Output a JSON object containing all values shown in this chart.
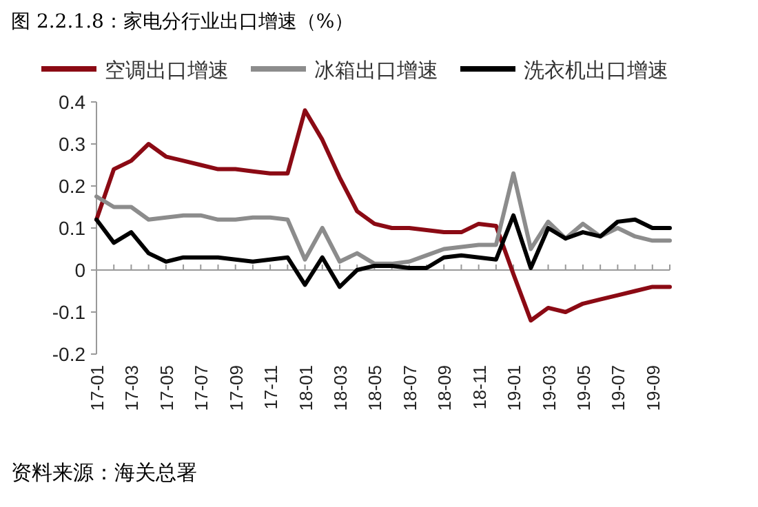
{
  "chart_data": {
    "type": "line",
    "title": "图 2.2.1.8：家电分行业出口增速（%）",
    "categories": [
      "17-01",
      null,
      "17-03",
      null,
      "17-05",
      null,
      "17-07",
      null,
      "17-09",
      null,
      "17-11",
      null,
      "18-01",
      null,
      "18-03",
      null,
      "18-05",
      null,
      "18-07",
      null,
      "18-09",
      null,
      "18-11",
      null,
      "19-01",
      null,
      "19-03",
      null,
      "19-05",
      null,
      "19-07",
      null,
      "19-09",
      null
    ],
    "series": [
      {
        "name": "空调出口增速",
        "color": "#8b0a14",
        "values": [
          0.12,
          0.24,
          0.26,
          0.3,
          0.27,
          0.26,
          0.25,
          0.24,
          0.24,
          0.235,
          0.23,
          0.23,
          0.38,
          0.31,
          0.22,
          0.14,
          0.11,
          0.1,
          0.1,
          0.095,
          0.09,
          0.09,
          0.11,
          0.105,
          -0.01,
          -0.12,
          -0.09,
          -0.1,
          -0.08,
          -0.07,
          -0.06,
          -0.05,
          -0.04,
          -0.04
        ]
      },
      {
        "name": "冰箱出口增速",
        "color": "#8c8c8c",
        "values": [
          0.175,
          0.15,
          0.15,
          0.12,
          0.125,
          0.13,
          0.13,
          0.12,
          0.12,
          0.125,
          0.125,
          0.12,
          0.025,
          0.1,
          0.02,
          0.04,
          0.015,
          0.015,
          0.02,
          0.035,
          0.05,
          0.055,
          0.06,
          0.06,
          0.23,
          0.05,
          0.115,
          0.075,
          0.11,
          0.08,
          0.1,
          0.08,
          0.07,
          0.07
        ]
      },
      {
        "name": "洗衣机出口增速",
        "color": "#000000",
        "values": [
          0.12,
          0.065,
          0.09,
          0.04,
          0.02,
          0.03,
          0.03,
          0.03,
          0.025,
          0.02,
          0.025,
          0.03,
          -0.035,
          0.03,
          -0.04,
          0.0,
          0.01,
          0.01,
          0.005,
          0.005,
          0.03,
          0.035,
          0.03,
          0.025,
          0.13,
          0.005,
          0.1,
          0.075,
          0.09,
          0.08,
          0.115,
          0.12,
          0.1,
          0.1
        ]
      }
    ],
    "ylim": [
      -0.2,
      0.4
    ],
    "yticks": [
      {
        "value": -0.2,
        "label": "-0.2"
      },
      {
        "value": -0.1,
        "label": "-0.1"
      },
      0,
      0.1,
      0.2,
      0.3,
      0.4
    ],
    "legend": "top",
    "annotations": [
      "资料来源：海关总署"
    ]
  }
}
